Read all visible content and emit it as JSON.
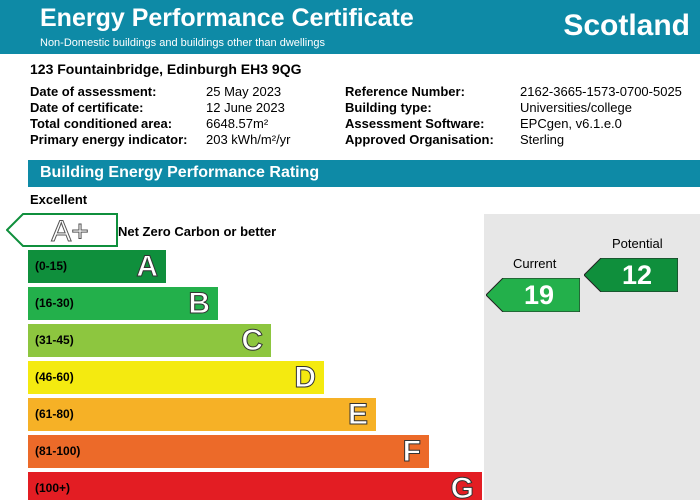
{
  "header": {
    "title": "Energy Performance Certificate",
    "subtitle": "Non-Domestic buildings and buildings other than dwellings",
    "country": "Scotland"
  },
  "address": "123 Fountainbridge, Edinburgh EH3 9QG",
  "details_left": [
    {
      "label": "Date of assessment:",
      "value": "25 May 2023"
    },
    {
      "label": "Date of certificate:",
      "value": "12 June 2023"
    },
    {
      "label": "Total conditioned area:",
      "value": "6648.57m²"
    },
    {
      "label": "Primary energy indicator:",
      "value": "203 kWh/m²/yr"
    }
  ],
  "details_right": [
    {
      "label": "Reference Number:",
      "value": "2162-3665-1573-0700-5025"
    },
    {
      "label": "Building type:",
      "value": "Universities/college"
    },
    {
      "label": "Assessment Software:",
      "value": "EPCgen, v6.1.e.0"
    },
    {
      "label": "Approved Organisation:",
      "value": "Sterling"
    }
  ],
  "rating": {
    "section_title": "Building Energy Performance Rating",
    "top_label": "Excellent",
    "aplus": {
      "letter": "A+",
      "description": "Net Zero Carbon or better"
    },
    "bands": [
      {
        "range": "(0-15)",
        "letter": "A",
        "color": "#0f8f3c"
      },
      {
        "range": "(16-30)",
        "letter": "B",
        "color": "#23b04b"
      },
      {
        "range": "(31-45)",
        "letter": "C",
        "color": "#8dc63f"
      },
      {
        "range": "(46-60)",
        "letter": "D",
        "color": "#f4ea10"
      },
      {
        "range": "(61-80)",
        "letter": "E",
        "color": "#f6b126"
      },
      {
        "range": "(81-100)",
        "letter": "F",
        "color": "#ec6a29"
      },
      {
        "range": "(100+)",
        "letter": "G",
        "color": "#e31d23"
      }
    ],
    "current": {
      "label": "Current",
      "value": "19",
      "color": "#23b04b"
    },
    "potential": {
      "label": "Potential",
      "value": "12",
      "color": "#0f8f3c"
    }
  }
}
